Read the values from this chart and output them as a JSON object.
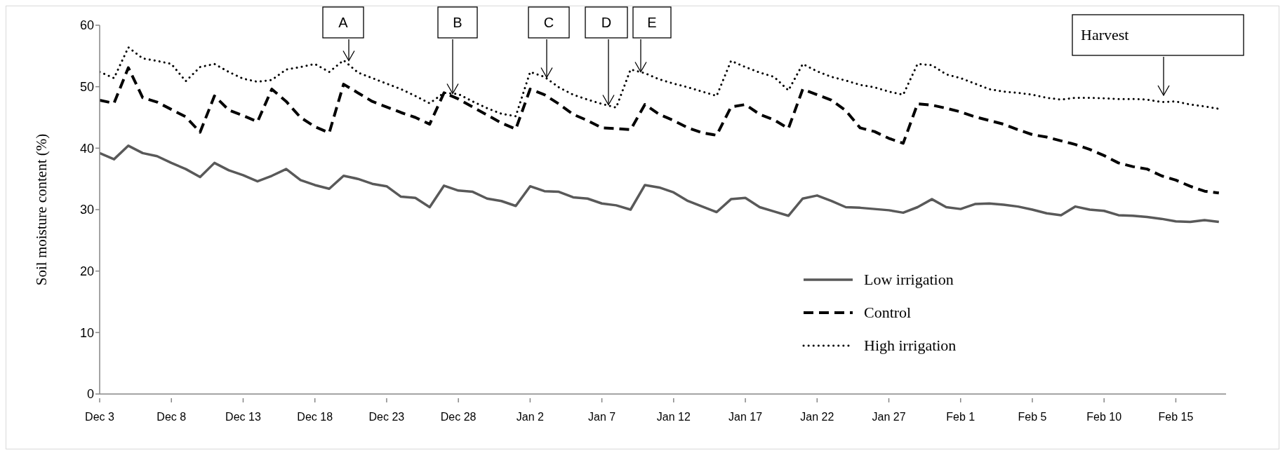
{
  "chart_data": {
    "type": "line",
    "ylabel": "Soil  moisture content  (%)",
    "categories": [
      "Dec 3",
      null,
      null,
      null,
      null,
      "Dec 8",
      null,
      null,
      null,
      null,
      "Dec 13",
      null,
      null,
      null,
      null,
      "Dec 18",
      null,
      null,
      null,
      null,
      "Dec 23",
      null,
      null,
      null,
      null,
      "Dec 28",
      null,
      null,
      null,
      null,
      "Jan 2",
      null,
      null,
      null,
      null,
      "Jan 7",
      null,
      null,
      null,
      null,
      "Jan 12",
      null,
      null,
      null,
      null,
      "Jan 17",
      null,
      null,
      null,
      null,
      "Jan 22",
      null,
      null,
      null,
      null,
      "Jan 27",
      null,
      null,
      null,
      null,
      "Feb 1",
      null,
      null,
      null,
      null,
      "Feb 5",
      null,
      null,
      null,
      null,
      "Feb 10",
      null,
      null,
      null,
      null,
      "Feb 15",
      null,
      null,
      null
    ],
    "series": [
      {
        "name": "Low irrigation",
        "color": "#595959",
        "line_style": "solid",
        "values": [
          39.2,
          38.2,
          40.4,
          39.2,
          38.7,
          37.6,
          36.6,
          35.3,
          37.6,
          36.4,
          35.6,
          34.6,
          35.5,
          36.6,
          34.8,
          34.0,
          33.4,
          35.5,
          35.0,
          34.2,
          33.8,
          32.1,
          31.9,
          30.4,
          33.9,
          33.1,
          32.9,
          31.8,
          31.4,
          30.6,
          33.8,
          33.0,
          32.9,
          32.0,
          31.8,
          31.0,
          30.7,
          30.0,
          34.0,
          33.6,
          32.8,
          31.4,
          30.5,
          29.6,
          31.7,
          31.9,
          30.4,
          29.7,
          29.0,
          31.8,
          32.3,
          31.4,
          30.4,
          30.3,
          30.1,
          29.9,
          29.5,
          30.4,
          31.7,
          30.4,
          30.1,
          30.9,
          31.0,
          30.8,
          30.5,
          30.0,
          29.4,
          29.1,
          30.5,
          30.0,
          29.8,
          29.1,
          29.0,
          28.8,
          28.5,
          28.1,
          28.0,
          28.3,
          28.0
        ]
      },
      {
        "name": "Control",
        "color": "#000000",
        "line_style": "dashed",
        "values": [
          47.8,
          47.3,
          53.1,
          48.2,
          47.5,
          46.3,
          45.1,
          42.6,
          48.5,
          46.2,
          45.3,
          44.3,
          49.6,
          47.6,
          45.0,
          43.5,
          42.5,
          50.4,
          49.0,
          47.6,
          46.7,
          45.8,
          45.0,
          43.9,
          49.0,
          48.0,
          46.7,
          45.4,
          44.1,
          43.1,
          49.6,
          48.7,
          47.2,
          45.5,
          44.5,
          43.3,
          43.2,
          43.0,
          47.1,
          45.5,
          44.5,
          43.3,
          42.5,
          42.1,
          46.7,
          47.1,
          45.5,
          44.6,
          43.2,
          49.6,
          48.7,
          47.8,
          46.1,
          43.3,
          42.7,
          41.6,
          40.8,
          47.2,
          47.0,
          46.5,
          45.9,
          45.1,
          44.5,
          43.9,
          43.0,
          42.2,
          41.8,
          41.2,
          40.6,
          39.8,
          38.8,
          37.6,
          37.0,
          36.6,
          35.5,
          34.8,
          33.8,
          33.0,
          32.7
        ]
      },
      {
        "name": "High irrigation",
        "color": "#000000",
        "line_style": "dotted",
        "values": [
          52.4,
          51.4,
          56.4,
          54.6,
          54.2,
          53.7,
          50.9,
          53.2,
          53.7,
          52.4,
          51.3,
          50.8,
          51.1,
          52.8,
          53.2,
          53.7,
          52.4,
          54.3,
          52.3,
          51.4,
          50.5,
          49.6,
          48.5,
          47.3,
          49.0,
          48.8,
          47.6,
          46.5,
          45.6,
          45.2,
          52.4,
          51.6,
          49.9,
          48.7,
          47.9,
          47.2,
          46.6,
          52.8,
          52.2,
          51.2,
          50.5,
          49.9,
          49.2,
          48.5,
          54.2,
          53.2,
          52.3,
          51.6,
          49.4,
          53.7,
          52.5,
          51.6,
          51.0,
          50.3,
          49.9,
          49.2,
          48.7,
          53.7,
          53.5,
          52.0,
          51.4,
          50.5,
          49.6,
          49.2,
          49.0,
          48.7,
          48.2,
          47.9,
          48.2,
          48.2,
          48.1,
          48.0,
          48.0,
          47.9,
          47.5,
          47.6,
          47.1,
          46.8,
          46.4
        ]
      }
    ],
    "ylim": [
      0,
      60
    ],
    "yticks": [
      0,
      10,
      20,
      30,
      40,
      50,
      60
    ],
    "legend": "bottom right",
    "annotations": [
      {
        "text": "A",
        "y": 54.3
      },
      {
        "text": "B",
        "y": 49.0
      },
      {
        "text": "C",
        "y": 51.6
      },
      {
        "text": "D",
        "y": 47.2
      },
      {
        "text": "E",
        "y": 52.5
      },
      "Harvest"
    ]
  }
}
